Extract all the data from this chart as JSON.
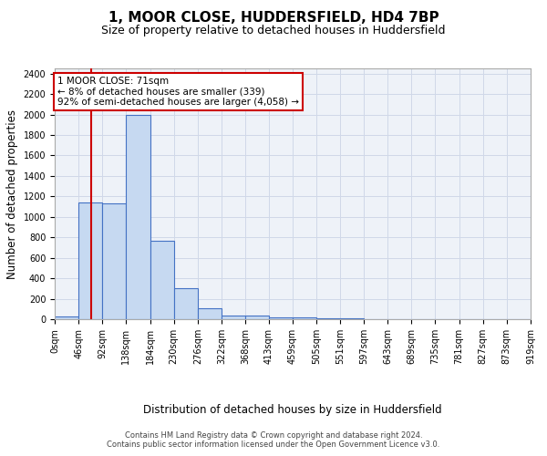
{
  "title1": "1, MOOR CLOSE, HUDDERSFIELD, HD4 7BP",
  "title2": "Size of property relative to detached houses in Huddersfield",
  "xlabel": "Distribution of detached houses by size in Huddersfield",
  "ylabel": "Number of detached properties",
  "bin_edges": [
    0,
    46,
    92,
    138,
    184,
    230,
    276,
    322,
    368,
    413,
    459,
    505,
    551,
    597,
    643,
    689,
    735,
    781,
    827,
    873,
    919
  ],
  "bar_heights": [
    30,
    1140,
    1130,
    2000,
    770,
    300,
    105,
    40,
    40,
    20,
    15,
    5,
    5,
    2,
    2,
    2,
    2,
    2,
    2,
    2
  ],
  "bar_color": "#c6d9f1",
  "bar_edge_color": "#4472c4",
  "bar_edge_width": 0.8,
  "ylim": [
    0,
    2450
  ],
  "yticks": [
    0,
    200,
    400,
    600,
    800,
    1000,
    1200,
    1400,
    1600,
    1800,
    2000,
    2200,
    2400
  ],
  "xtick_labels": [
    "0sqm",
    "46sqm",
    "92sqm",
    "138sqm",
    "184sqm",
    "230sqm",
    "276sqm",
    "322sqm",
    "368sqm",
    "413sqm",
    "459sqm",
    "505sqm",
    "551sqm",
    "597sqm",
    "643sqm",
    "689sqm",
    "735sqm",
    "781sqm",
    "827sqm",
    "873sqm",
    "919sqm"
  ],
  "property_size": 71,
  "red_line_color": "#cc0000",
  "annotation_text": "1 MOOR CLOSE: 71sqm\n← 8% of detached houses are smaller (339)\n92% of semi-detached houses are larger (4,058) →",
  "annotation_box_color": "#ffffff",
  "annotation_border_color": "#cc0000",
  "grid_color": "#d0d8e8",
  "background_color": "#eef2f8",
  "footnote1": "Contains HM Land Registry data © Crown copyright and database right 2024.",
  "footnote2": "Contains public sector information licensed under the Open Government Licence v3.0.",
  "title1_fontsize": 11,
  "title2_fontsize": 9,
  "xlabel_fontsize": 8.5,
  "ylabel_fontsize": 8.5,
  "tick_fontsize": 7,
  "annotation_fontsize": 7.5,
  "footnote_fontsize": 6
}
